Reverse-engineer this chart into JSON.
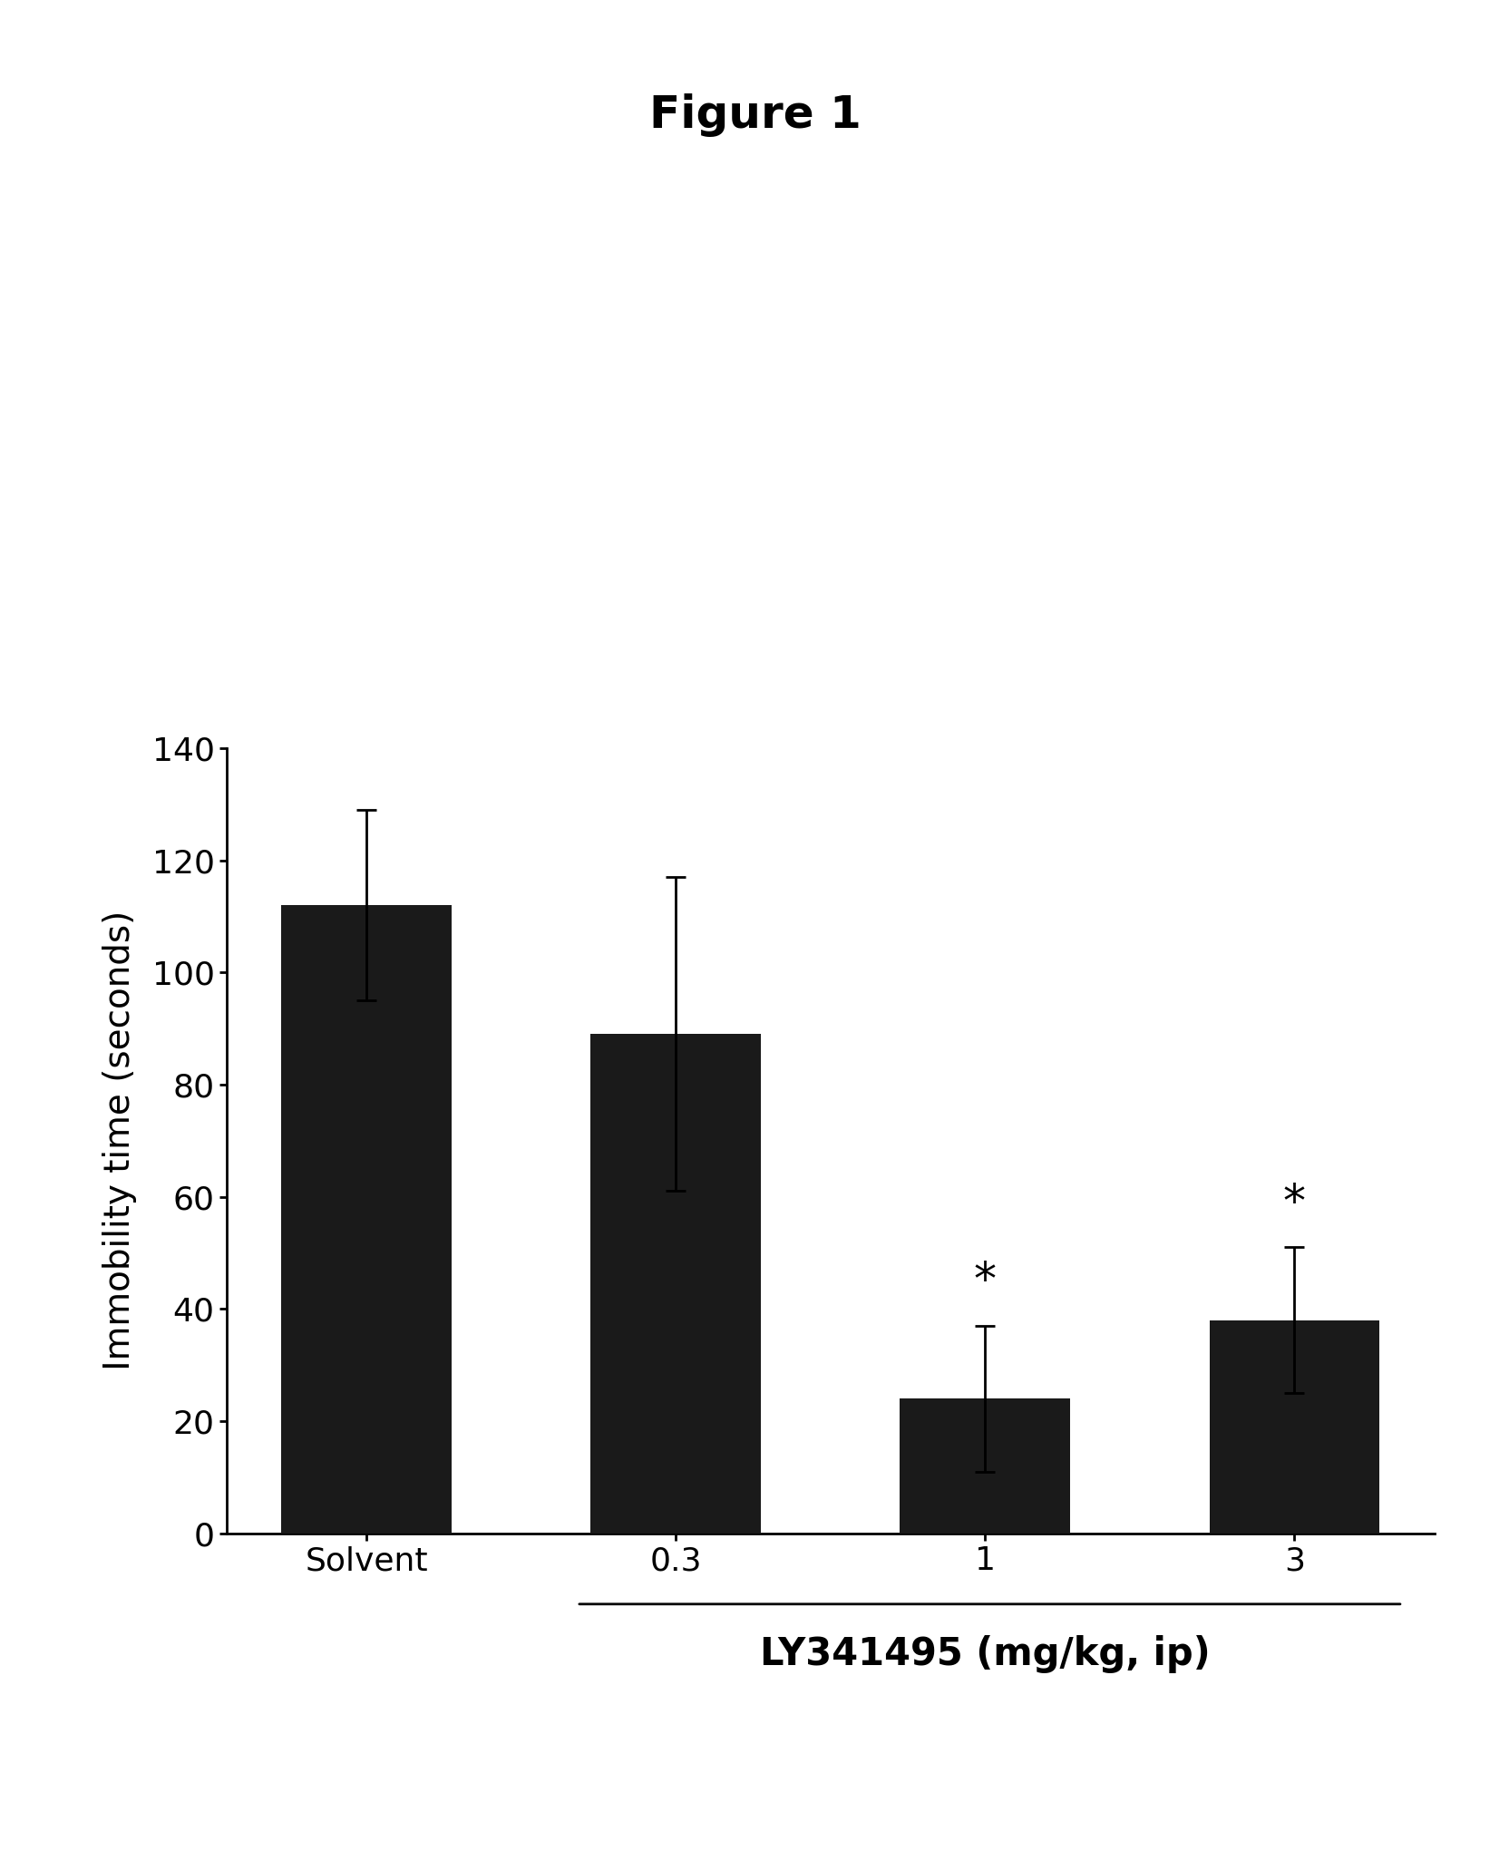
{
  "title": "Figure 1",
  "categories": [
    "Solvent",
    "0.3",
    "1",
    "3"
  ],
  "values": [
    112,
    89,
    24,
    38
  ],
  "errors": [
    17,
    28,
    13,
    13
  ],
  "bar_color": "#1a1a1a",
  "bar_width": 0.55,
  "ylabel": "Immobility time (seconds)",
  "xlabel_main": "LY341495 (mg/kg, ip)",
  "ylim": [
    0,
    140
  ],
  "yticks": [
    0,
    20,
    40,
    60,
    80,
    100,
    120,
    140
  ],
  "significance": [
    false,
    false,
    true,
    true
  ],
  "significance_symbol": "*",
  "background_color": "#ffffff",
  "title_fontsize": 36,
  "axis_label_fontsize": 28,
  "tick_fontsize": 26,
  "sig_fontsize": 36,
  "xlabel_fontsize": 30
}
